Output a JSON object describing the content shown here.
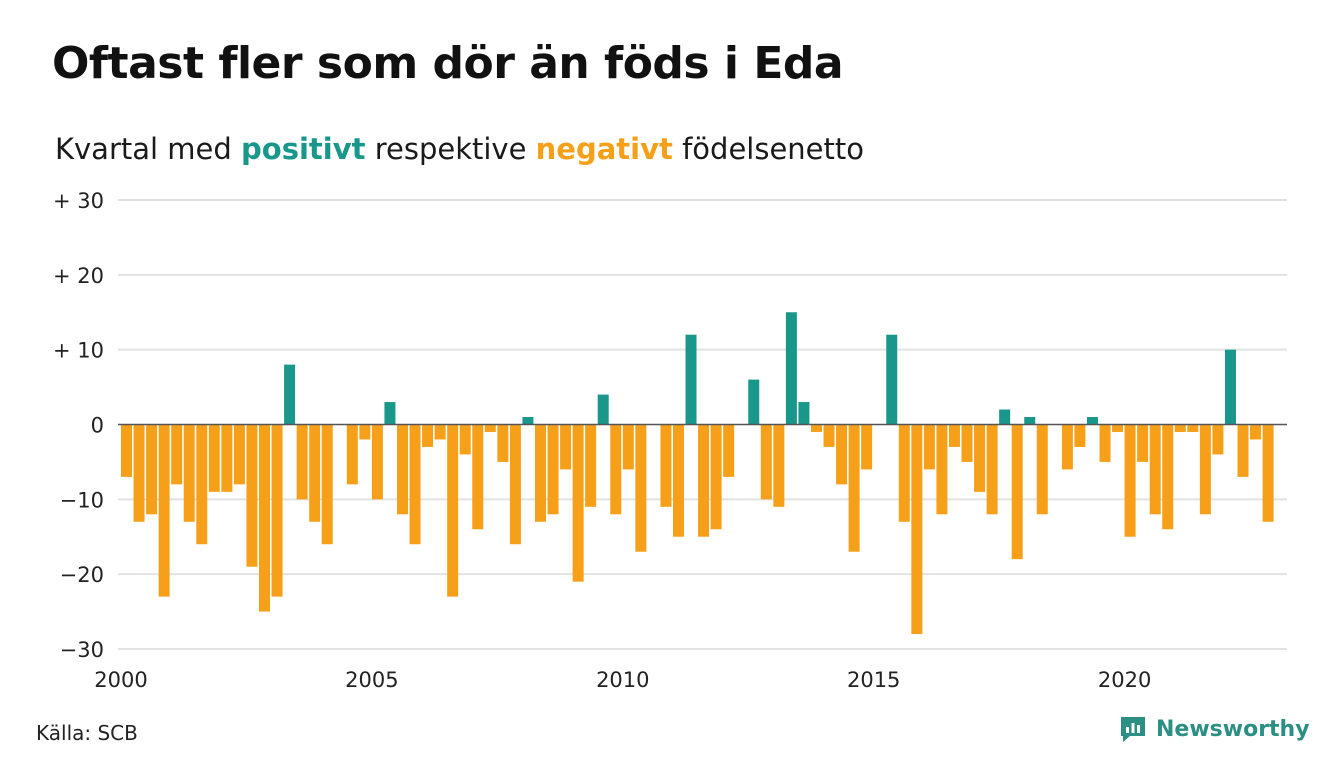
{
  "title": "Oftast fler som dör än föds i Eda",
  "subtitle": {
    "prefix": "Kvartal med ",
    "positive": "positivt",
    "middle": " respektive ",
    "negative": "negativt",
    "suffix": " födelsenetto"
  },
  "source": "Källa: SCB",
  "brand": "Newsworthy",
  "colors": {
    "positive": "#18978a",
    "negative": "#f6a01a",
    "grid": "#e2e2e2",
    "zero_line": "#555555"
  },
  "chart_data": {
    "type": "bar",
    "x_start": "2000 Q1",
    "x_tick_labels": [
      "2000",
      "2005",
      "2010",
      "2015",
      "2020"
    ],
    "y_ticks": [
      30,
      20,
      10,
      0,
      -10,
      -20,
      -30
    ],
    "y_tick_labels": [
      "+ 30",
      "+ 20",
      "+ 10",
      "0",
      "−10",
      "−20",
      "−30"
    ],
    "ylim": [
      -30,
      30
    ],
    "grid": true,
    "values": [
      -7,
      -13,
      -12,
      -23,
      -8,
      -13,
      -16,
      -9,
      -9,
      -8,
      -19,
      -25,
      -23,
      8,
      -10,
      -13,
      -16,
      0,
      -8,
      -2,
      -10,
      3,
      -12,
      -16,
      -3,
      -2,
      -23,
      -4,
      -14,
      -1,
      -5,
      -16,
      1,
      -13,
      -12,
      -6,
      -21,
      -11,
      4,
      -12,
      -6,
      -17,
      0,
      -11,
      -15,
      12,
      -15,
      -14,
      -7,
      0,
      6,
      -10,
      -11,
      15,
      3,
      -1,
      -3,
      -8,
      -17,
      -6,
      0,
      12,
      -13,
      -28,
      -6,
      -12,
      -3,
      -5,
      -9,
      -12,
      2,
      -18,
      1,
      -12,
      0,
      -6,
      -3,
      1,
      -5,
      -1,
      -15,
      -5,
      -12,
      -14,
      -1,
      -1,
      -12,
      -4,
      10,
      -7,
      -2,
      -13
    ]
  }
}
